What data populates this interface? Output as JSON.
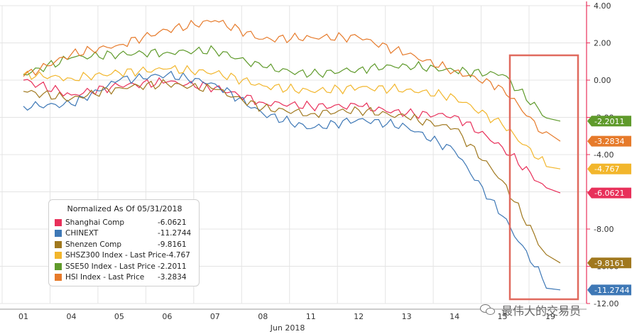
{
  "chart_data": {
    "type": "line",
    "title": "",
    "xlabel": "Jun 2018",
    "ylabel": "",
    "ylim": [
      -12,
      4
    ],
    "yticks": [
      4.0,
      2.0,
      0.0,
      -2.0,
      -4.0,
      -6.0,
      -8.0,
      -10.0,
      -12.0
    ],
    "ytick_labels": [
      "4.00",
      "2.00",
      "0.00",
      "-2.00",
      "-4.00",
      "-6.00",
      "-8.00",
      "-10.00",
      "-12.00"
    ],
    "x": [
      "01",
      "04",
      "05",
      "06",
      "07",
      "08",
      "11",
      "12",
      "13",
      "14",
      "15",
      "19"
    ],
    "series": [
      {
        "name": "Shanghai Comp",
        "color": "#e8305a",
        "value": "-6.0621",
        "values": [
          0.0,
          -0.8,
          -0.3,
          -0.1,
          -0.4,
          -1.2,
          -1.4,
          -1.4,
          -1.8,
          -1.9,
          -3.6,
          -6.06
        ]
      },
      {
        "name": "CHINEXT",
        "color": "#3e78b6",
        "value": "-11.2744",
        "values": [
          -1.4,
          -1.3,
          0.0,
          0.3,
          -0.2,
          -1.8,
          -2.6,
          -2.1,
          -2.5,
          -3.8,
          -7.3,
          -11.27
        ]
      },
      {
        "name": "Shenzen Comp",
        "color": "#a0781e",
        "value": "-9.8161",
        "values": [
          -0.6,
          -1.0,
          -0.4,
          -0.2,
          -0.5,
          -1.5,
          -1.8,
          -1.6,
          -2.0,
          -2.6,
          -5.4,
          -9.82
        ]
      },
      {
        "name": "SHSZ300 Index - Last Price",
        "color": "#f2b62c",
        "value": "-4.767",
        "values": [
          0.3,
          0.1,
          0.4,
          0.6,
          0.4,
          -0.3,
          -0.6,
          -0.4,
          -0.5,
          -0.9,
          -2.4,
          -4.77
        ]
      },
      {
        "name": "SSE50 Index - Last Price",
        "color": "#5f9a2b",
        "value": "-2.2011",
        "values": [
          0.3,
          1.2,
          1.4,
          1.5,
          1.6,
          0.7,
          0.3,
          0.6,
          0.8,
          0.5,
          0.3,
          -2.2
        ]
      },
      {
        "name": "HSI Index - Last Price",
        "color": "#e67a2a",
        "value": "-3.2834",
        "values": [
          0.2,
          1.4,
          1.9,
          2.7,
          3.2,
          2.2,
          2.3,
          2.3,
          1.4,
          0.5,
          -0.4,
          -3.28
        ]
      }
    ],
    "legend": {
      "title": "Normalized As Of 05/31/2018",
      "placement": "bottom-left"
    },
    "highlight_box": {
      "from": "15",
      "to": "19",
      "color": "#e06a5e"
    },
    "grid": true
  },
  "watermark": {
    "text": "最伟大的交易员"
  }
}
